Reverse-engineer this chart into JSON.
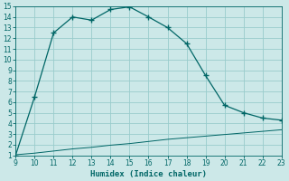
{
  "title": "",
  "xlabel": "Humidex (Indice chaleur)",
  "bg_color": "#cce8e8",
  "grid_color": "#99cccc",
  "line_color": "#006666",
  "x_upper": [
    9,
    10,
    11,
    12,
    13,
    14,
    15,
    16,
    17,
    18,
    19,
    20,
    21,
    22,
    23
  ],
  "y_upper": [
    1.0,
    6.5,
    12.5,
    14.0,
    13.7,
    14.7,
    14.95,
    14.0,
    13.0,
    11.5,
    8.5,
    5.7,
    5.0,
    4.5,
    4.3
  ],
  "x_lower": [
    9,
    10,
    11,
    12,
    13,
    14,
    15,
    16,
    17,
    18,
    19,
    20,
    21,
    22,
    23
  ],
  "y_lower": [
    1.05,
    1.2,
    1.4,
    1.6,
    1.75,
    1.95,
    2.1,
    2.3,
    2.5,
    2.65,
    2.8,
    2.95,
    3.1,
    3.25,
    3.4
  ],
  "xlim": [
    9,
    23
  ],
  "ylim": [
    1,
    15
  ],
  "yticks": [
    1,
    2,
    3,
    4,
    5,
    6,
    7,
    8,
    9,
    10,
    11,
    12,
    13,
    14,
    15
  ],
  "xticks": [
    9,
    10,
    11,
    12,
    13,
    14,
    15,
    16,
    17,
    18,
    19,
    20,
    21,
    22,
    23
  ],
  "tick_fontsize": 5.5,
  "xlabel_fontsize": 6.5
}
